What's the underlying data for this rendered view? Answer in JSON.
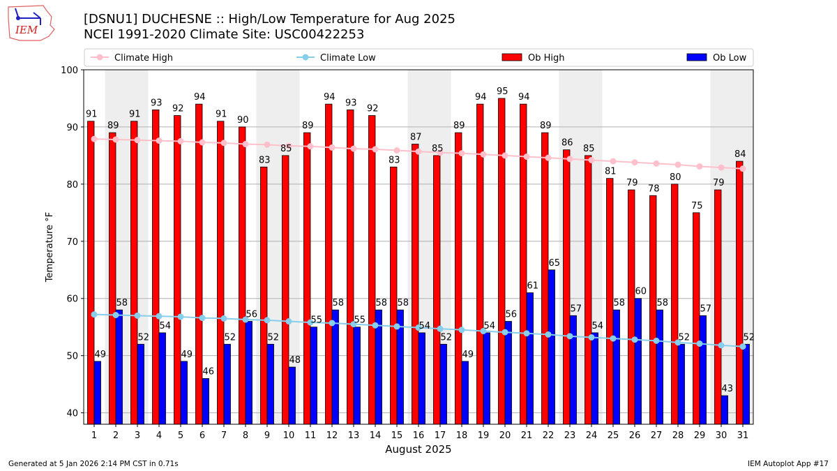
{
  "header": {
    "logo_text": "IEM",
    "title_line1": "[DSNU1] DUCHESNE :: High/Low Temperature for Aug 2025",
    "title_line2": "NCEI 1991-2020 Climate Site: USC00422253"
  },
  "footer": {
    "generated": "Generated at 5 Jan 2026 2:14 PM CST in 0.71s",
    "app": "IEM Autoplot App #17"
  },
  "colors": {
    "ob_high": "#ff0000",
    "ob_low": "#0000ff",
    "climate_high": "#ffc0cb",
    "climate_low": "#87ceeb",
    "weekend_shade": "#eeeeee",
    "grid": "#b0b0b0"
  },
  "chart_data": {
    "type": "bar",
    "title": "[DSNU1] DUCHESNE :: High/Low Temperature for Aug 2025",
    "subtitle": "NCEI 1991-2020 Climate Site: USC00422253",
    "xlabel": "August 2025",
    "ylabel": "Temperature °F",
    "ylim": [
      38,
      100
    ],
    "yticks": [
      40,
      50,
      60,
      70,
      80,
      90,
      100
    ],
    "grid": true,
    "legend_position": "top",
    "categories": [
      "1",
      "2",
      "3",
      "4",
      "5",
      "6",
      "7",
      "8",
      "9",
      "10",
      "11",
      "12",
      "13",
      "14",
      "15",
      "16",
      "17",
      "18",
      "19",
      "20",
      "21",
      "22",
      "23",
      "24",
      "25",
      "26",
      "27",
      "28",
      "29",
      "30",
      "31"
    ],
    "shaded_days": [
      2,
      3,
      9,
      10,
      16,
      17,
      23,
      24,
      30,
      31
    ],
    "series": [
      {
        "name": "Climate High",
        "kind": "line",
        "values": [
          87.9,
          87.8,
          87.7,
          87.6,
          87.5,
          87.3,
          87.2,
          87.0,
          86.9,
          86.7,
          86.6,
          86.4,
          86.2,
          86.1,
          85.9,
          85.7,
          85.5,
          85.4,
          85.2,
          85.0,
          84.8,
          84.6,
          84.4,
          84.2,
          84.0,
          83.8,
          83.6,
          83.4,
          83.1,
          82.9,
          82.7
        ]
      },
      {
        "name": "Climate Low",
        "kind": "line",
        "values": [
          57.2,
          57.1,
          57.0,
          56.9,
          56.8,
          56.6,
          56.5,
          56.3,
          56.2,
          56.0,
          55.8,
          55.7,
          55.5,
          55.3,
          55.1,
          54.9,
          54.7,
          54.5,
          54.3,
          54.1,
          53.9,
          53.7,
          53.4,
          53.2,
          53.0,
          52.8,
          52.6,
          52.3,
          52.1,
          51.8,
          51.6
        ]
      },
      {
        "name": "Ob High",
        "kind": "bar",
        "values": [
          91,
          89,
          91,
          93,
          92,
          94,
          91,
          90,
          83,
          85,
          89,
          94,
          93,
          92,
          83,
          87,
          85,
          89,
          94,
          95,
          94,
          89,
          86,
          85,
          81,
          79,
          78,
          80,
          75,
          79,
          84
        ]
      },
      {
        "name": "Ob Low",
        "kind": "bar",
        "values": [
          49,
          58,
          52,
          54,
          49,
          46,
          52,
          56,
          52,
          48,
          55,
          58,
          55,
          58,
          58,
          54,
          52,
          49,
          54,
          56,
          61,
          65,
          57,
          54,
          58,
          60,
          58,
          52,
          57,
          43,
          52
        ]
      }
    ]
  }
}
